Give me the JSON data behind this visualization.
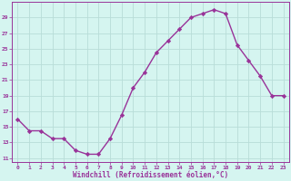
{
  "x": [
    0,
    1,
    2,
    3,
    4,
    5,
    6,
    7,
    8,
    9,
    10,
    11,
    12,
    13,
    14,
    15,
    16,
    17,
    18,
    19,
    20,
    21,
    22,
    23
  ],
  "y": [
    16,
    14.5,
    14.5,
    13.5,
    13.5,
    12,
    11.5,
    11.5,
    13.5,
    16.5,
    20,
    22,
    24.5,
    26,
    27.5,
    29,
    29.5,
    30,
    29.5,
    25.5,
    23.5,
    21.5,
    19,
    19
  ],
  "line_color": "#993399",
  "marker": "D",
  "marker_size": 2.2,
  "bg_color": "#d5f5f0",
  "grid_color": "#b8ddd8",
  "xlabel": "Windchill (Refroidissement éolien,°C)",
  "xlabel_color": "#993399",
  "tick_color": "#993399",
  "yticks": [
    11,
    13,
    15,
    17,
    19,
    21,
    23,
    25,
    27,
    29
  ],
  "ylim": [
    10.5,
    31
  ],
  "xlim": [
    -0.5,
    23.5
  ],
  "xticks": [
    0,
    1,
    2,
    3,
    4,
    5,
    6,
    7,
    8,
    9,
    10,
    11,
    12,
    13,
    14,
    15,
    16,
    17,
    18,
    19,
    20,
    21,
    22,
    23
  ]
}
